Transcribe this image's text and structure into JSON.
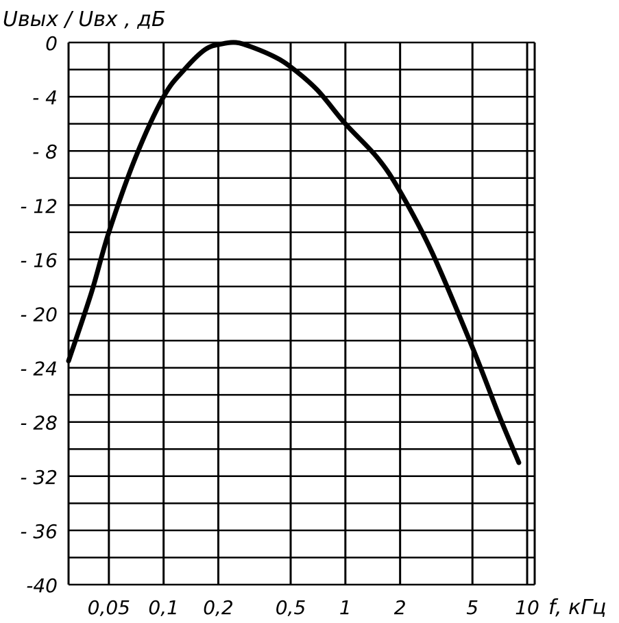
{
  "chart_data": {
    "type": "line",
    "title": "",
    "ylabel": "Uвых / Uвх , дБ",
    "xlabel": "f, кГц",
    "xscale": "log",
    "xlim": [
      0.03,
      11
    ],
    "ylim": [
      -40,
      0
    ],
    "grid": true,
    "x_ticks": [
      {
        "value": 0.05,
        "label": "0,05"
      },
      {
        "value": 0.1,
        "label": "0,1"
      },
      {
        "value": 0.2,
        "label": "0,2"
      },
      {
        "value": 0.5,
        "label": "0,5"
      },
      {
        "value": 1,
        "label": "1"
      },
      {
        "value": 2,
        "label": "2"
      },
      {
        "value": 5,
        "label": "5"
      },
      {
        "value": 10,
        "label": "10"
      }
    ],
    "y_ticks": [
      {
        "value": 0,
        "label": "0"
      },
      {
        "value": -4,
        "label": "- 4"
      },
      {
        "value": -8,
        "label": "- 8"
      },
      {
        "value": -12,
        "label": "- 12"
      },
      {
        "value": -16,
        "label": "- 16"
      },
      {
        "value": -20,
        "label": "- 20"
      },
      {
        "value": -24,
        "label": "- 24"
      },
      {
        "value": -28,
        "label": "- 28"
      },
      {
        "value": -32,
        "label": "- 32"
      },
      {
        "value": -36,
        "label": "- 36"
      },
      {
        "value": -40,
        "label": "-40"
      }
    ],
    "series": [
      {
        "x": [
          0.03,
          0.04,
          0.05,
          0.07,
          0.1,
          0.13,
          0.17,
          0.21,
          0.25,
          0.3,
          0.4,
          0.5,
          0.7,
          1,
          1.5,
          2,
          3,
          5,
          7,
          9
        ],
        "y": [
          -23.5,
          -18.5,
          -14.0,
          -8.5,
          -4.0,
          -2.0,
          -0.5,
          -0.1,
          0.0,
          -0.3,
          -1.0,
          -1.8,
          -3.5,
          -6.0,
          -8.5,
          -11.0,
          -15.5,
          -22.5,
          -27.5,
          -31.0
        ]
      }
    ],
    "colors": {
      "line": "#000000",
      "grid": "#000000",
      "background": "#ffffff"
    }
  }
}
